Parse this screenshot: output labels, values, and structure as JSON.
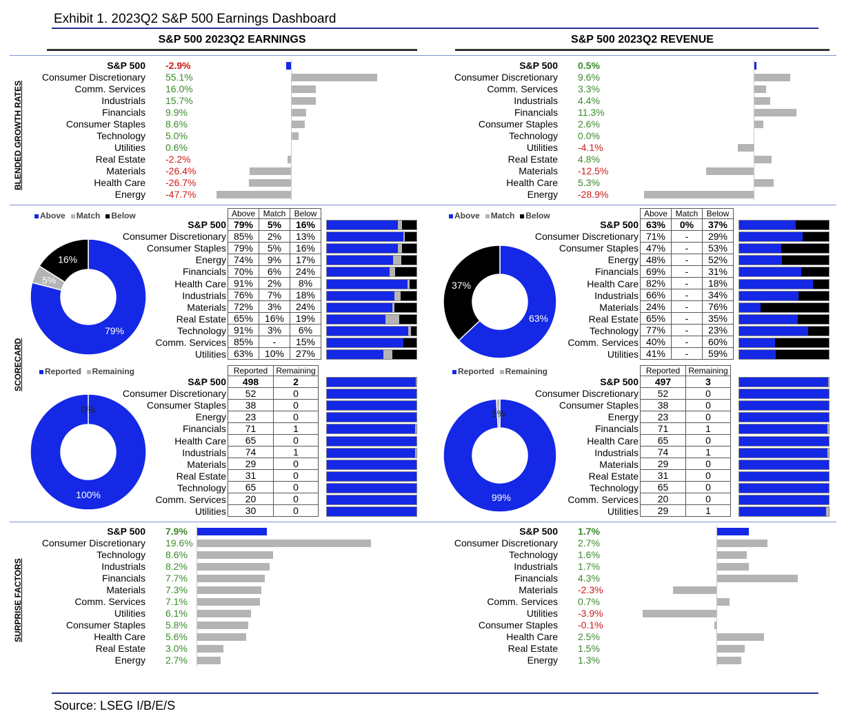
{
  "title": "Exhibit 1.   2023Q2 S&P 500 Earnings Dashboard",
  "source": "Source: LSEG I/B/E/S",
  "colors": {
    "blue": "#1428e6",
    "gray": "#b4b4b4",
    "black": "#000000",
    "pos": "#3a8a2a",
    "neg": "#d01818"
  },
  "headers": {
    "earnings": "S&P 500 2023Q2 EARNINGS",
    "revenue": "S&P 500 2023Q2 REVENUE"
  },
  "side_labels": {
    "growth": "BLENDED GROWTH RATES",
    "scorecard": "SCORECARD",
    "surprise": "SURPRISE FACTORS"
  },
  "legends": {
    "scorecard": [
      "Above",
      "Match",
      "Below"
    ],
    "reported": [
      "Reported",
      "Remaining"
    ]
  },
  "chart_data": [
    {
      "type": "bar",
      "id": "earnings_growth",
      "categories": [
        "S&P 500",
        "Consumer Discretionary",
        "Comm. Services",
        "Industrials",
        "Financials",
        "Consumer Staples",
        "Technology",
        "Utilities",
        "Real Estate",
        "Materials",
        "Health Care",
        "Energy"
      ],
      "values": [
        -2.9,
        55.1,
        16.0,
        15.7,
        9.9,
        8.6,
        5.0,
        0.6,
        -2.2,
        -26.4,
        -26.7,
        -47.7
      ],
      "labels": [
        "-2.9%",
        "55.1%",
        "16.0%",
        "15.7%",
        "9.9%",
        "8.6%",
        "5.0%",
        "0.6%",
        "-2.2%",
        "-26.4%",
        "-26.7%",
        "-47.7%"
      ]
    },
    {
      "type": "bar",
      "id": "revenue_growth",
      "categories": [
        "S&P 500",
        "Consumer Discretionary",
        "Comm. Services",
        "Industrials",
        "Financials",
        "Consumer Staples",
        "Technology",
        "Utilities",
        "Real Estate",
        "Materials",
        "Health Care",
        "Energy"
      ],
      "values": [
        0.5,
        9.6,
        3.3,
        4.4,
        11.3,
        2.6,
        0.0,
        -4.1,
        4.8,
        -12.5,
        5.3,
        -28.9
      ],
      "labels": [
        "0.5%",
        "9.6%",
        "3.3%",
        "4.4%",
        "11.3%",
        "2.6%",
        "0.0%",
        "-4.1%",
        "4.8%",
        "-12.5%",
        "5.3%",
        "-28.9%"
      ]
    },
    {
      "type": "table",
      "id": "earnings_scorecard",
      "columns": [
        "Above",
        "Match",
        "Below"
      ],
      "categories": [
        "S&P 500",
        "Consumer Discretionary",
        "Consumer Staples",
        "Energy",
        "Financials",
        "Health Care",
        "Industrials",
        "Materials",
        "Real Estate",
        "Technology",
        "Comm. Services",
        "Utilities"
      ],
      "rows": [
        [
          "79%",
          "5%",
          "16%"
        ],
        [
          "85%",
          "2%",
          "13%"
        ],
        [
          "79%",
          "5%",
          "16%"
        ],
        [
          "74%",
          "9%",
          "17%"
        ],
        [
          "70%",
          "6%",
          "24%"
        ],
        [
          "91%",
          "2%",
          "8%"
        ],
        [
          "76%",
          "7%",
          "18%"
        ],
        [
          "72%",
          "3%",
          "24%"
        ],
        [
          "65%",
          "16%",
          "19%"
        ],
        [
          "91%",
          "3%",
          "6%"
        ],
        [
          "85%",
          "-",
          "15%"
        ],
        [
          "63%",
          "10%",
          "27%"
        ]
      ],
      "values": [
        [
          79,
          5,
          16
        ],
        [
          85,
          2,
          13
        ],
        [
          79,
          5,
          16
        ],
        [
          74,
          9,
          17
        ],
        [
          70,
          6,
          24
        ],
        [
          91,
          2,
          8
        ],
        [
          76,
          7,
          18
        ],
        [
          72,
          3,
          24
        ],
        [
          65,
          16,
          19
        ],
        [
          91,
          3,
          6
        ],
        [
          85,
          0,
          15
        ],
        [
          63,
          10,
          27
        ]
      ],
      "pie": {
        "values": [
          79,
          5,
          16
        ],
        "labels": [
          "79%",
          "5%",
          "16%"
        ]
      }
    },
    {
      "type": "table",
      "id": "revenue_scorecard",
      "columns": [
        "Above",
        "Match",
        "Below"
      ],
      "categories": [
        "S&P 500",
        "Consumer Discretionary",
        "Consumer Staples",
        "Energy",
        "Financials",
        "Health Care",
        "Industrials",
        "Materials",
        "Real Estate",
        "Technology",
        "Comm. Services",
        "Utilities"
      ],
      "rows": [
        [
          "63%",
          "0%",
          "37%"
        ],
        [
          "71%",
          "-",
          "29%"
        ],
        [
          "47%",
          "-",
          "53%"
        ],
        [
          "48%",
          "-",
          "52%"
        ],
        [
          "69%",
          "-",
          "31%"
        ],
        [
          "82%",
          "-",
          "18%"
        ],
        [
          "66%",
          "-",
          "34%"
        ],
        [
          "24%",
          "-",
          "76%"
        ],
        [
          "65%",
          "-",
          "35%"
        ],
        [
          "77%",
          "-",
          "23%"
        ],
        [
          "40%",
          "-",
          "60%"
        ],
        [
          "41%",
          "-",
          "59%"
        ]
      ],
      "values": [
        [
          63,
          0,
          37
        ],
        [
          71,
          0,
          29
        ],
        [
          47,
          0,
          53
        ],
        [
          48,
          0,
          52
        ],
        [
          69,
          0,
          31
        ],
        [
          82,
          0,
          18
        ],
        [
          66,
          0,
          34
        ],
        [
          24,
          0,
          76
        ],
        [
          65,
          0,
          35
        ],
        [
          77,
          0,
          23
        ],
        [
          40,
          0,
          60
        ],
        [
          41,
          0,
          59
        ]
      ],
      "pie": {
        "values": [
          63,
          37
        ],
        "labels": [
          "63%",
          "37%"
        ]
      }
    },
    {
      "type": "table",
      "id": "earnings_reported",
      "columns": [
        "Reported",
        "Remaining"
      ],
      "categories": [
        "S&P 500",
        "Consumer Discretionary",
        "Consumer Staples",
        "Energy",
        "Financials",
        "Health Care",
        "Industrials",
        "Materials",
        "Real Estate",
        "Technology",
        "Comm. Services",
        "Utilities"
      ],
      "values": [
        [
          498,
          2
        ],
        [
          52,
          0
        ],
        [
          38,
          0
        ],
        [
          23,
          0
        ],
        [
          71,
          1
        ],
        [
          65,
          0
        ],
        [
          74,
          1
        ],
        [
          29,
          0
        ],
        [
          31,
          0
        ],
        [
          65,
          0
        ],
        [
          20,
          0
        ],
        [
          30,
          0
        ]
      ],
      "pie": {
        "values": [
          100,
          0
        ],
        "labels": [
          "100%",
          "0%"
        ]
      }
    },
    {
      "type": "table",
      "id": "revenue_reported",
      "columns": [
        "Reported",
        "Remaining"
      ],
      "categories": [
        "S&P 500",
        "Consumer Discretionary",
        "Consumer Staples",
        "Energy",
        "Financials",
        "Health Care",
        "Industrials",
        "Materials",
        "Real Estate",
        "Technology",
        "Comm. Services",
        "Utilities"
      ],
      "values": [
        [
          497,
          3
        ],
        [
          52,
          0
        ],
        [
          38,
          0
        ],
        [
          23,
          0
        ],
        [
          71,
          1
        ],
        [
          65,
          0
        ],
        [
          74,
          1
        ],
        [
          29,
          0
        ],
        [
          31,
          0
        ],
        [
          65,
          0
        ],
        [
          20,
          0
        ],
        [
          29,
          1
        ]
      ],
      "pie": {
        "values": [
          99,
          1
        ],
        "labels": [
          "99%",
          "1%"
        ]
      }
    },
    {
      "type": "bar",
      "id": "earnings_surprise",
      "categories": [
        "S&P 500",
        "Consumer Discretionary",
        "Technology",
        "Industrials",
        "Financials",
        "Materials",
        "Comm. Services",
        "Utilities",
        "Consumer Staples",
        "Health Care",
        "Real Estate",
        "Energy"
      ],
      "values": [
        7.9,
        19.6,
        8.6,
        8.2,
        7.7,
        7.3,
        7.1,
        6.1,
        5.8,
        5.6,
        3.0,
        2.7
      ],
      "labels": [
        "7.9%",
        "19.6%",
        "8.6%",
        "8.2%",
        "7.7%",
        "7.3%",
        "7.1%",
        "6.1%",
        "5.8%",
        "5.6%",
        "3.0%",
        "2.7%"
      ]
    },
    {
      "type": "bar",
      "id": "revenue_surprise",
      "categories": [
        "S&P 500",
        "Consumer Discretionary",
        "Technology",
        "Industrials",
        "Financials",
        "Materials",
        "Comm. Services",
        "Utilities",
        "Consumer Staples",
        "Health Care",
        "Real Estate",
        "Energy"
      ],
      "values": [
        1.7,
        2.7,
        1.6,
        1.7,
        4.3,
        -2.3,
        0.7,
        -3.9,
        -0.1,
        2.5,
        1.5,
        1.3
      ],
      "labels": [
        "1.7%",
        "2.7%",
        "1.6%",
        "1.7%",
        "4.3%",
        "-2.3%",
        "0.7%",
        "-3.9%",
        "-0.1%",
        "2.5%",
        "1.5%",
        "1.3%"
      ]
    }
  ]
}
